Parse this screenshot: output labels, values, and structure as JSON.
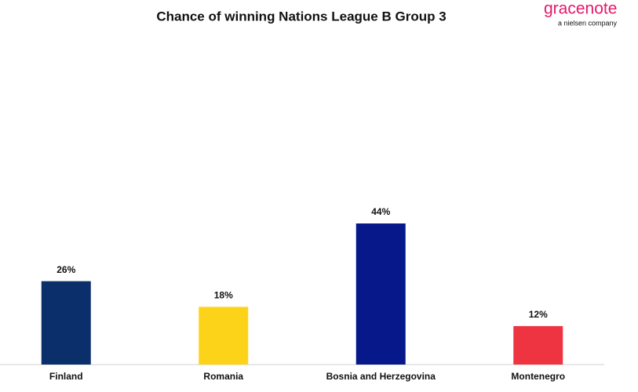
{
  "chart_data": {
    "type": "bar",
    "title": "Chance of winning Nations League B Group 3",
    "brand": "gracenote",
    "brand_subtitle": "a nielsen company",
    "categories": [
      "Finland",
      "Romania",
      "Bosnia and Herzegovina",
      "Montenegro"
    ],
    "values": [
      26,
      18,
      44,
      12
    ],
    "value_labels": [
      "26%",
      "18%",
      "44%",
      "12%"
    ],
    "colors": [
      "#0b2f6b",
      "#fdd31a",
      "#07188a",
      "#ee3441"
    ]
  }
}
